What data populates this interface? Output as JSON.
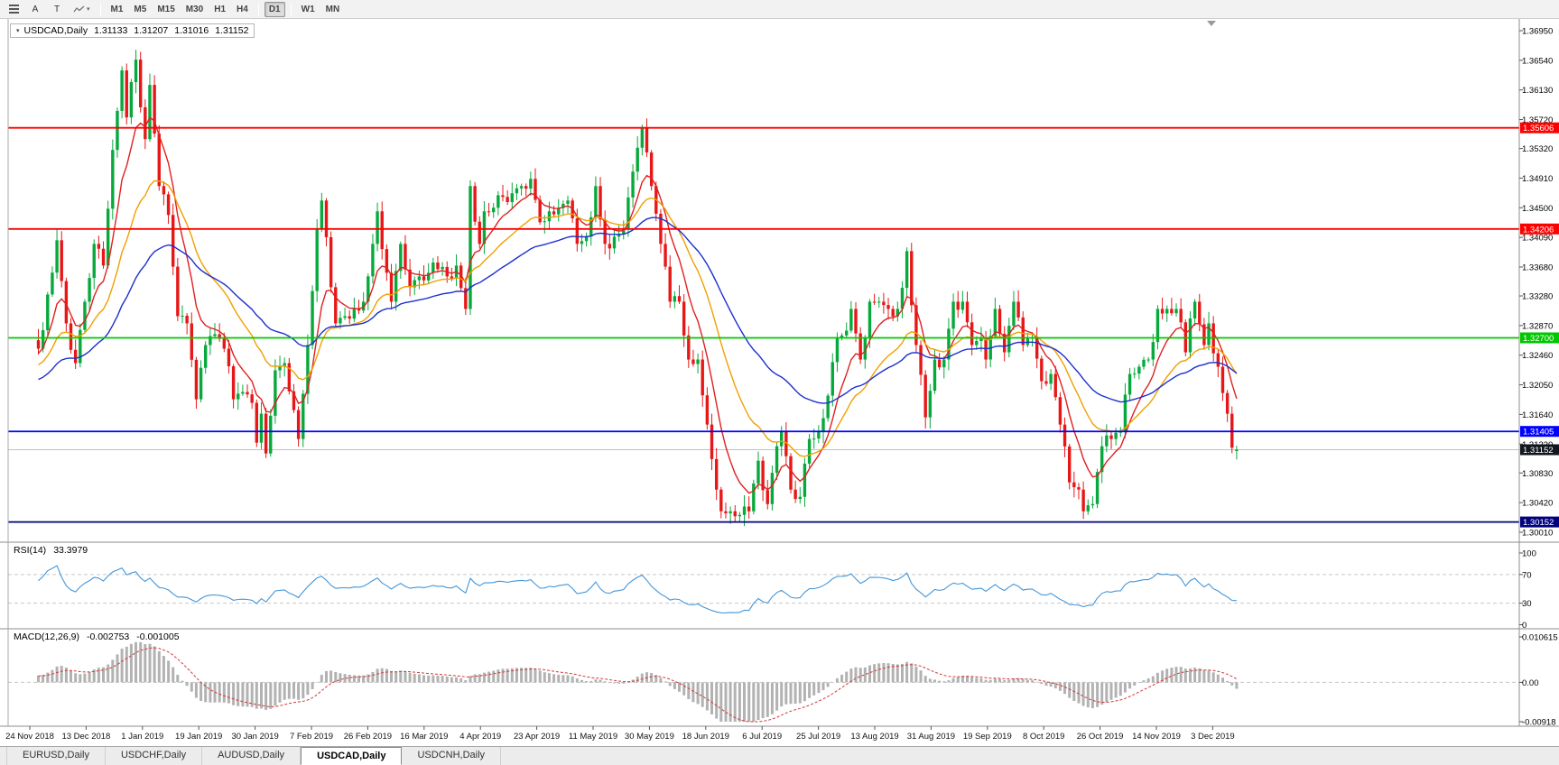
{
  "toolbar": {
    "tools": [
      {
        "label": "A"
      },
      {
        "label": "T"
      }
    ],
    "timeframes": [
      {
        "label": "M1",
        "active": false
      },
      {
        "label": "M5",
        "active": false
      },
      {
        "label": "M15",
        "active": false
      },
      {
        "label": "M30",
        "active": false
      },
      {
        "label": "H1",
        "active": false
      },
      {
        "label": "H4",
        "active": false
      },
      {
        "label": "D1",
        "active": true
      },
      {
        "label": "W1",
        "active": false
      },
      {
        "label": "MN",
        "active": false
      }
    ]
  },
  "chart": {
    "title": {
      "symbol": "USDCAD,Daily",
      "open": "1.31133",
      "high": "1.31207",
      "low": "1.31016",
      "close": "1.31152"
    },
    "indicators": {
      "rsi": {
        "name": "RSI(14)",
        "value": "33.3979",
        "levels": [
          "100",
          "70",
          "30",
          "0"
        ]
      },
      "macd": {
        "name": "MACD(12,26,9)",
        "value1": "-0.002753",
        "value2": "-0.001005",
        "scale": [
          "0.010615",
          "0.00",
          "-0.00918"
        ]
      }
    }
  },
  "tabs": [
    {
      "label": "EURUSD,Daily",
      "active": false
    },
    {
      "label": "USDCHF,Daily",
      "active": false
    },
    {
      "label": "AUDUSD,Daily",
      "active": false
    },
    {
      "label": "USDCAD,Daily",
      "active": true
    },
    {
      "label": "USDCNH,Daily",
      "active": false
    }
  ],
  "chart_data": {
    "type": "candlestick",
    "symbol": "USDCAD",
    "timeframe": "Daily",
    "price_axis": {
      "max": 1.3695,
      "min": 1.3001,
      "ticks": [
        "1.36950",
        "1.36540",
        "1.36130",
        "1.35720",
        "1.35320",
        "1.34910",
        "1.34500",
        "1.34090",
        "1.33680",
        "1.33280",
        "1.32870",
        "1.32460",
        "1.32050",
        "1.31640",
        "1.31230",
        "1.30830",
        "1.30420",
        "1.30010"
      ]
    },
    "date_labels": [
      "24 Nov 2018",
      "13 Dec 2018",
      "1 Jan 2019",
      "19 Jan 2019",
      "30 Jan 2019",
      "7 Feb 2019",
      "26 Feb 2019",
      "16 Mar 2019",
      "4 Apr 2019",
      "23 Apr 2019",
      "11 May 2019",
      "30 May 2019",
      "18 Jun 2019",
      "6 Jul 2019",
      "25 Jul 2019",
      "13 Aug 2019",
      "31 Aug 2019",
      "19 Sep 2019",
      "8 Oct 2019",
      "26 Oct 2019",
      "14 Nov 2019",
      "3 Dec 2019"
    ],
    "hlines": [
      {
        "price": 1.35606,
        "color": "#ff0000",
        "label": "1.35606"
      },
      {
        "price": 1.34206,
        "color": "#ff0000",
        "label": "1.34206"
      },
      {
        "price": 1.327,
        "color": "#00c800",
        "label": "1.32700"
      },
      {
        "price": 1.31405,
        "color": "#0000ff",
        "label": "1.31405"
      },
      {
        "price": 1.30152,
        "color": "#000080",
        "label": "1.30152"
      }
    ],
    "bid": {
      "price": 1.31152,
      "label": "1.31152",
      "line_color": "#c0c0c0",
      "label_bg": "#11161f"
    },
    "last_candle": {
      "open": 1.31133,
      "high": 1.31207,
      "low": 1.31016,
      "close": 1.31152
    },
    "colors": {
      "bull": "#07a93c",
      "bear": "#e81717",
      "rsi": "#4596d8",
      "macd_hist": "#b2b2b2",
      "macd_signal": "#d03838"
    },
    "moving_averages": [
      {
        "period": 8,
        "color": "#e02020"
      },
      {
        "period": 21,
        "color": "#f0a000"
      },
      {
        "period": 45,
        "color": "#1c2fd0"
      }
    ],
    "close_anchors": [
      [
        0,
        1.3255
      ],
      [
        2,
        1.333
      ],
      [
        4,
        1.3405
      ],
      [
        6,
        1.329
      ],
      [
        8,
        1.3235
      ],
      [
        10,
        1.332
      ],
      [
        12,
        1.34
      ],
      [
        14,
        1.337
      ],
      [
        16,
        1.353
      ],
      [
        18,
        1.364
      ],
      [
        19,
        1.3575
      ],
      [
        21,
        1.3655
      ],
      [
        23,
        1.3545
      ],
      [
        24,
        1.362
      ],
      [
        26,
        1.348
      ],
      [
        28,
        1.344
      ],
      [
        30,
        1.33
      ],
      [
        32,
        1.329
      ],
      [
        34,
        1.3185
      ],
      [
        36,
        1.326
      ],
      [
        38,
        1.3275
      ],
      [
        40,
        1.3255
      ],
      [
        42,
        1.3185
      ],
      [
        44,
        1.3195
      ],
      [
        46,
        1.318
      ],
      [
        47,
        1.3125
      ],
      [
        48,
        1.3165
      ],
      [
        49,
        1.311
      ],
      [
        51,
        1.3225
      ],
      [
        53,
        1.3235
      ],
      [
        55,
        1.317
      ],
      [
        56,
        1.313
      ],
      [
        58,
        1.326
      ],
      [
        60,
        1.342
      ],
      [
        61,
        1.346
      ],
      [
        63,
        1.334
      ],
      [
        64,
        1.329
      ],
      [
        66,
        1.33
      ],
      [
        68,
        1.331
      ],
      [
        70,
        1.332
      ],
      [
        72,
        1.34
      ],
      [
        73,
        1.3445
      ],
      [
        75,
        1.336
      ],
      [
        76,
        1.332
      ],
      [
        78,
        1.34
      ],
      [
        80,
        1.334
      ],
      [
        82,
        1.3355
      ],
      [
        84,
        1.336
      ],
      [
        86,
        1.3365
      ],
      [
        88,
        1.3355
      ],
      [
        90,
        1.337
      ],
      [
        92,
        1.331
      ],
      [
        93,
        1.348
      ],
      [
        95,
        1.34
      ],
      [
        96,
        1.3445
      ],
      [
        98,
        1.345
      ],
      [
        100,
        1.3465
      ],
      [
        102,
        1.347
      ],
      [
        104,
        1.348
      ],
      [
        106,
        1.349
      ],
      [
        108,
        1.343
      ],
      [
        110,
        1.3445
      ],
      [
        112,
        1.345
      ],
      [
        114,
        1.346
      ],
      [
        116,
        1.34
      ],
      [
        118,
        1.341
      ],
      [
        120,
        1.348
      ],
      [
        122,
        1.34
      ],
      [
        124,
        1.341
      ],
      [
        126,
        1.342
      ],
      [
        128,
        1.35
      ],
      [
        130,
        1.356
      ],
      [
        132,
        1.348
      ],
      [
        134,
        1.34
      ],
      [
        136,
        1.332
      ],
      [
        138,
        1.332
      ],
      [
        140,
        1.324
      ],
      [
        142,
        1.324
      ],
      [
        144,
        1.315
      ],
      [
        146,
        1.306
      ],
      [
        147,
        1.303
      ],
      [
        149,
        1.303
      ],
      [
        151,
        1.3025
      ],
      [
        153,
        1.303
      ],
      [
        155,
        1.31
      ],
      [
        157,
        1.304
      ],
      [
        159,
        1.312
      ],
      [
        160,
        1.314
      ],
      [
        162,
        1.306
      ],
      [
        164,
        1.305
      ],
      [
        166,
        1.313
      ],
      [
        168,
        1.314
      ],
      [
        170,
        1.319
      ],
      [
        172,
        1.327
      ],
      [
        174,
        1.328
      ],
      [
        175,
        1.331
      ],
      [
        177,
        1.324
      ],
      [
        179,
        1.332
      ],
      [
        181,
        1.332
      ],
      [
        183,
        1.331
      ],
      [
        185,
        1.331
      ],
      [
        187,
        1.339
      ],
      [
        189,
        1.326
      ],
      [
        191,
        1.316
      ],
      [
        193,
        1.324
      ],
      [
        195,
        1.324
      ],
      [
        197,
        1.332
      ],
      [
        199,
        1.332
      ],
      [
        201,
        1.326
      ],
      [
        203,
        1.327
      ],
      [
        204,
        1.324
      ],
      [
        206,
        1.331
      ],
      [
        208,
        1.325
      ],
      [
        210,
        1.332
      ],
      [
        212,
        1.326
      ],
      [
        214,
        1.327
      ],
      [
        216,
        1.321
      ],
      [
        218,
        1.322
      ],
      [
        220,
        1.315
      ],
      [
        222,
        1.307
      ],
      [
        224,
        1.306
      ],
      [
        225,
        1.303
      ],
      [
        227,
        1.304
      ],
      [
        229,
        1.312
      ],
      [
        231,
        1.313
      ],
      [
        233,
        1.314
      ],
      [
        235,
        1.322
      ],
      [
        237,
        1.323
      ],
      [
        239,
        1.324
      ],
      [
        241,
        1.331
      ],
      [
        243,
        1.331
      ],
      [
        245,
        1.331
      ],
      [
        247,
        1.325
      ],
      [
        249,
        1.332
      ],
      [
        251,
        1.326
      ],
      [
        252,
        1.329
      ],
      [
        254,
        1.323
      ],
      [
        256,
        1.3165
      ],
      [
        257,
        1.3118
      ],
      [
        258,
        1.31152
      ]
    ]
  }
}
